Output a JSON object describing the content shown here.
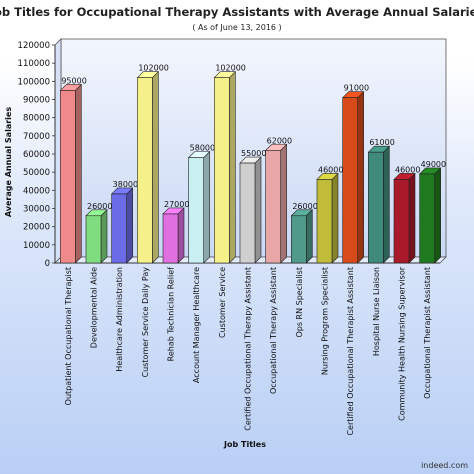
{
  "chart_data": {
    "type": "bar",
    "title": "Job Titles for Occupational Therapy Assistants with Average Annual Salaries",
    "subtitle": "( As of June 13, 2016 )",
    "xlabel": "Job Titles",
    "ylabel": "Average Annual Salaries",
    "ylim": [
      0,
      120000
    ],
    "yticks": [
      0,
      10000,
      20000,
      30000,
      40000,
      50000,
      60000,
      70000,
      80000,
      90000,
      100000,
      110000,
      120000
    ],
    "grid": false,
    "categories": [
      "Outpatient Occupational Therapist",
      "Developmental Aide",
      "Healthcare Administration",
      "Customer Service Daily Pay",
      "Rehab Technician Relief",
      "Account Manager Healthcare",
      "Customer Service",
      "Certified Occupational Therapy Assistant",
      "Occupational Therapy Assistant",
      "Ops RN Specialist",
      "Nursing Program Specialist",
      "Certified Occupational Therapist Assistant",
      "Hospital Nurse Liaison",
      "Community Health Nursing Supervisor",
      "Occupational Therapist Assistant"
    ],
    "values": [
      95000,
      26000,
      38000,
      102000,
      27000,
      58000,
      102000,
      55000,
      62000,
      26000,
      46000,
      91000,
      61000,
      46000,
      49000
    ],
    "value_labels": [
      "95000",
      "26000",
      "38000",
      "102000",
      "27000",
      "58000",
      "102000",
      "55000",
      "62000",
      "26000",
      "46000",
      "91000",
      "61000",
      "46000",
      "49000"
    ],
    "colors": [
      "#f08a8a",
      "#7fdc7f",
      "#6b6be8",
      "#f5f08a",
      "#e070e0",
      "#c8f0f0",
      "#f5f08a",
      "#cfcfcf",
      "#e8a6a6",
      "#4f9a8a",
      "#c0bc3a",
      "#d84a1a",
      "#3f8a7a",
      "#a81a2a",
      "#1f7a1f"
    ]
  },
  "credit": "indeed.com"
}
